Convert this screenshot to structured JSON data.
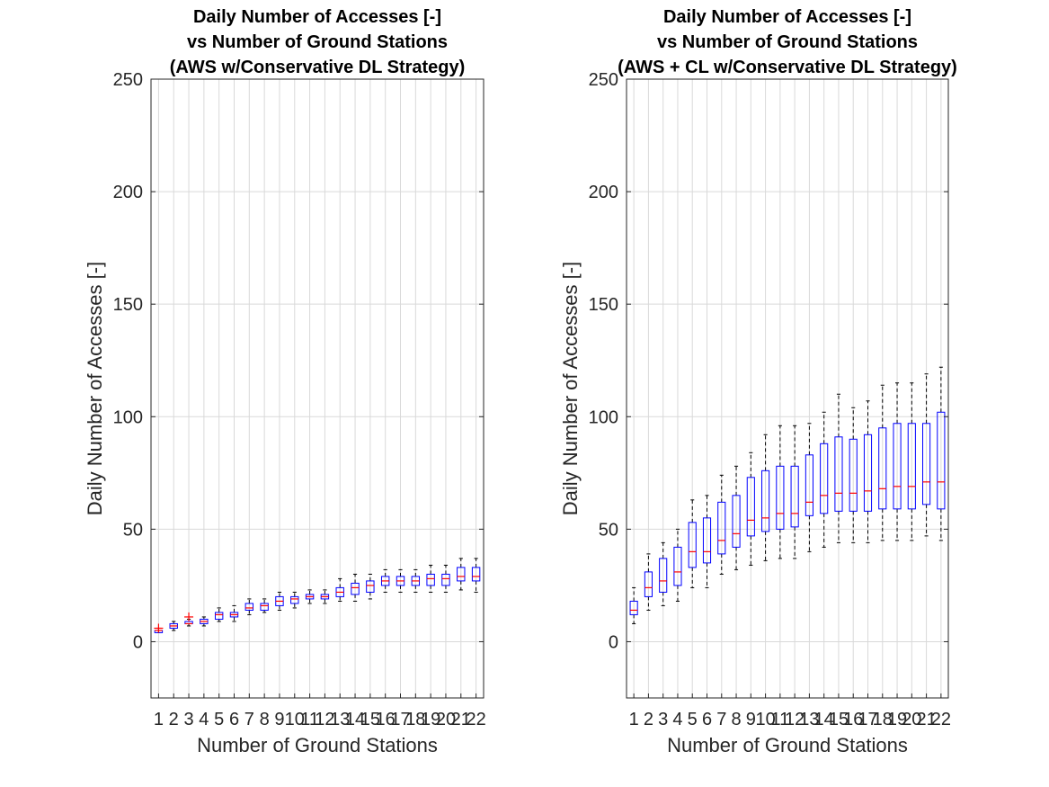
{
  "chart_data": [
    {
      "type": "boxplot",
      "title": [
        "Daily Number of Accesses [-]",
        "vs Number of Ground Stations",
        "(AWS w/Conservative DL Strategy)"
      ],
      "xlabel": "Number of Ground Stations",
      "ylabel": "Daily Number of Accesses [-]",
      "ylim": [
        -25,
        250
      ],
      "yticks": [
        0,
        50,
        100,
        150,
        200,
        250
      ],
      "grid": true,
      "categories": [
        "1",
        "2",
        "3",
        "4",
        "5",
        "6",
        "7",
        "8",
        "9",
        "10",
        "11",
        "12",
        "13",
        "14",
        "15",
        "16",
        "17",
        "18",
        "19",
        "20",
        "21",
        "22"
      ],
      "boxes": [
        {
          "min": 4,
          "q1": 4,
          "median": 5,
          "q3": 5,
          "max": 6,
          "outliers": [
            6
          ]
        },
        {
          "min": 5,
          "q1": 6,
          "median": 7,
          "q3": 8,
          "max": 9,
          "outliers": []
        },
        {
          "min": 7,
          "q1": 8,
          "median": 8,
          "q3": 9,
          "max": 10,
          "outliers": [
            11
          ]
        },
        {
          "min": 7,
          "q1": 8,
          "median": 9,
          "q3": 10,
          "max": 11,
          "outliers": []
        },
        {
          "min": 9,
          "q1": 10,
          "median": 12,
          "q3": 13,
          "max": 15,
          "outliers": []
        },
        {
          "min": 9,
          "q1": 11,
          "median": 12,
          "q3": 13,
          "max": 16,
          "outliers": []
        },
        {
          "min": 12,
          "q1": 14,
          "median": 15,
          "q3": 17,
          "max": 19,
          "outliers": []
        },
        {
          "min": 13,
          "q1": 14,
          "median": 16,
          "q3": 17,
          "max": 19,
          "outliers": []
        },
        {
          "min": 14,
          "q1": 16,
          "median": 18,
          "q3": 20,
          "max": 22,
          "outliers": []
        },
        {
          "min": 15,
          "q1": 17,
          "median": 19,
          "q3": 20,
          "max": 22,
          "outliers": []
        },
        {
          "min": 17,
          "q1": 19,
          "median": 20,
          "q3": 21,
          "max": 23,
          "outliers": []
        },
        {
          "min": 17,
          "q1": 19,
          "median": 20,
          "q3": 21,
          "max": 23,
          "outliers": []
        },
        {
          "min": 18,
          "q1": 20,
          "median": 22,
          "q3": 24,
          "max": 28,
          "outliers": []
        },
        {
          "min": 18,
          "q1": 21,
          "median": 24,
          "q3": 26,
          "max": 30,
          "outliers": []
        },
        {
          "min": 19,
          "q1": 22,
          "median": 25,
          "q3": 27,
          "max": 30,
          "outliers": []
        },
        {
          "min": 22,
          "q1": 25,
          "median": 27,
          "q3": 29,
          "max": 32,
          "outliers": []
        },
        {
          "min": 22,
          "q1": 25,
          "median": 27,
          "q3": 29,
          "max": 32,
          "outliers": []
        },
        {
          "min": 22,
          "q1": 25,
          "median": 27,
          "q3": 29,
          "max": 32,
          "outliers": []
        },
        {
          "min": 22,
          "q1": 25,
          "median": 28,
          "q3": 30,
          "max": 34,
          "outliers": []
        },
        {
          "min": 22,
          "q1": 25,
          "median": 28,
          "q3": 30,
          "max": 34,
          "outliers": []
        },
        {
          "min": 23,
          "q1": 27,
          "median": 29,
          "q3": 33,
          "max": 37,
          "outliers": []
        },
        {
          "min": 22,
          "q1": 27,
          "median": 29,
          "q3": 33,
          "max": 37,
          "outliers": []
        }
      ]
    },
    {
      "type": "boxplot",
      "title": [
        "Daily Number of Accesses [-]",
        "vs Number of Ground Stations",
        "(AWS + CL w/Conservative DL Strategy)"
      ],
      "xlabel": "Number of Ground Stations",
      "ylabel": "Daily Number of Accesses [-]",
      "ylim": [
        -25,
        250
      ],
      "yticks": [
        0,
        50,
        100,
        150,
        200,
        250
      ],
      "grid": true,
      "categories": [
        "1",
        "2",
        "3",
        "4",
        "5",
        "6",
        "7",
        "8",
        "9",
        "10",
        "11",
        "12",
        "13",
        "14",
        "15",
        "16",
        "17",
        "18",
        "19",
        "20",
        "21",
        "22"
      ],
      "boxes": [
        {
          "min": 8,
          "q1": 12,
          "median": 14,
          "q3": 18,
          "max": 24,
          "outliers": []
        },
        {
          "min": 14,
          "q1": 20,
          "median": 24,
          "q3": 31,
          "max": 39,
          "outliers": []
        },
        {
          "min": 16,
          "q1": 22,
          "median": 27,
          "q3": 37,
          "max": 44,
          "outliers": []
        },
        {
          "min": 18,
          "q1": 25,
          "median": 31,
          "q3": 42,
          "max": 50,
          "outliers": []
        },
        {
          "min": 24,
          "q1": 33,
          "median": 40,
          "q3": 53,
          "max": 63,
          "outliers": []
        },
        {
          "min": 24,
          "q1": 35,
          "median": 40,
          "q3": 55,
          "max": 65,
          "outliers": []
        },
        {
          "min": 30,
          "q1": 39,
          "median": 45,
          "q3": 62,
          "max": 74,
          "outliers": []
        },
        {
          "min": 32,
          "q1": 42,
          "median": 48,
          "q3": 65,
          "max": 78,
          "outliers": []
        },
        {
          "min": 34,
          "q1": 47,
          "median": 54,
          "q3": 73,
          "max": 84,
          "outliers": []
        },
        {
          "min": 36,
          "q1": 49,
          "median": 55,
          "q3": 76,
          "max": 92,
          "outliers": []
        },
        {
          "min": 37,
          "q1": 50,
          "median": 57,
          "q3": 78,
          "max": 96,
          "outliers": []
        },
        {
          "min": 37,
          "q1": 51,
          "median": 57,
          "q3": 78,
          "max": 96,
          "outliers": []
        },
        {
          "min": 40,
          "q1": 56,
          "median": 62,
          "q3": 83,
          "max": 97,
          "outliers": []
        },
        {
          "min": 42,
          "q1": 57,
          "median": 65,
          "q3": 88,
          "max": 102,
          "outliers": []
        },
        {
          "min": 44,
          "q1": 58,
          "median": 66,
          "q3": 91,
          "max": 110,
          "outliers": []
        },
        {
          "min": 44,
          "q1": 58,
          "median": 66,
          "q3": 90,
          "max": 104,
          "outliers": []
        },
        {
          "min": 44,
          "q1": 58,
          "median": 67,
          "q3": 92,
          "max": 107,
          "outliers": []
        },
        {
          "min": 45,
          "q1": 59,
          "median": 68,
          "q3": 95,
          "max": 114,
          "outliers": []
        },
        {
          "min": 45,
          "q1": 59,
          "median": 69,
          "q3": 97,
          "max": 115,
          "outliers": []
        },
        {
          "min": 45,
          "q1": 59,
          "median": 69,
          "q3": 97,
          "max": 115,
          "outliers": []
        },
        {
          "min": 47,
          "q1": 61,
          "median": 71,
          "q3": 97,
          "max": 119,
          "outliers": []
        },
        {
          "min": 45,
          "q1": 59,
          "median": 71,
          "q3": 102,
          "max": 122,
          "outliers": []
        }
      ]
    }
  ],
  "colors": {
    "box": "#0000ff",
    "median": "#ff0000",
    "whisker": "#000000",
    "grid": "#d9d9d9",
    "axes": "#262626"
  }
}
